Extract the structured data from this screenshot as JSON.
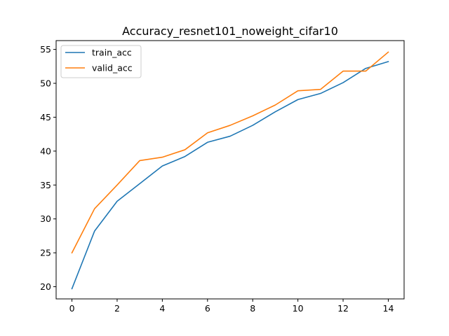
{
  "chart_data": {
    "type": "line",
    "title": "Accuracy_resnet101_noweight_cifar10",
    "xlabel": "",
    "ylabel": "",
    "x": [
      0,
      1,
      2,
      3,
      4,
      5,
      6,
      7,
      8,
      9,
      10,
      11,
      12,
      13,
      14
    ],
    "xlim": [
      -0.7,
      14.7
    ],
    "ylim": [
      18.2,
      56.3
    ],
    "xticks": [
      0,
      2,
      4,
      6,
      8,
      10,
      12,
      14
    ],
    "yticks": [
      20,
      25,
      30,
      35,
      40,
      45,
      50,
      55
    ],
    "grid": false,
    "legend_position": "upper-left",
    "series": [
      {
        "name": "train_acc",
        "color": "#1f77b4",
        "values": [
          19.7,
          28.2,
          32.6,
          35.2,
          37.8,
          39.2,
          41.3,
          42.2,
          43.8,
          45.8,
          47.6,
          48.5,
          50.1,
          52.2,
          53.2
        ]
      },
      {
        "name": "valid_acc",
        "color": "#ff7f0e",
        "values": [
          25.0,
          31.5,
          35.0,
          38.6,
          39.1,
          40.2,
          42.7,
          43.8,
          45.2,
          46.8,
          48.9,
          49.1,
          51.8,
          51.8,
          54.6
        ]
      }
    ]
  }
}
